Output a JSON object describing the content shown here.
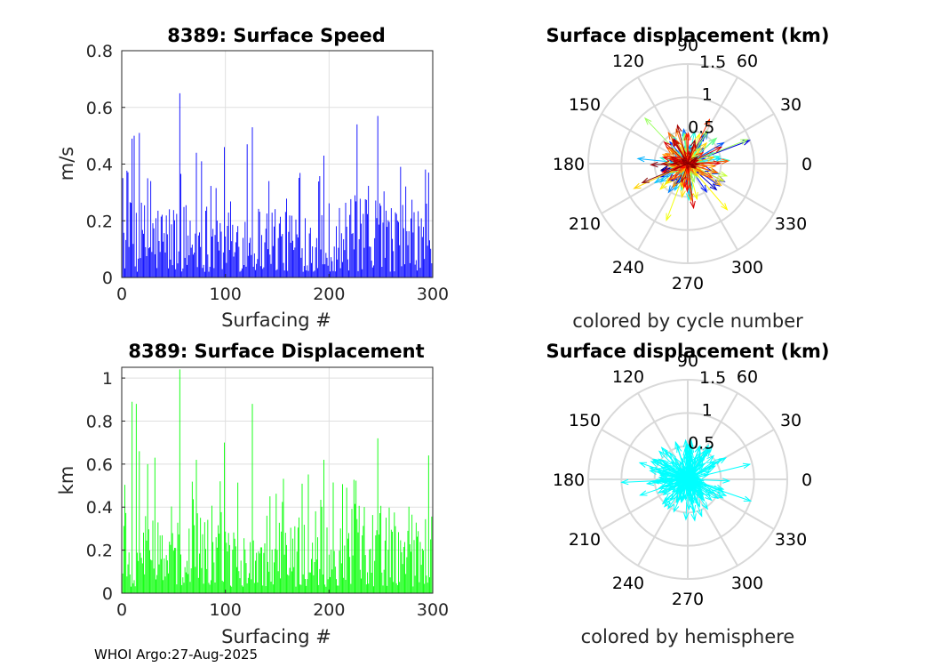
{
  "footer": "WHOI Argo:27-Aug-2025",
  "chart_data": [
    {
      "type": "bar",
      "title": "8389: Surface Speed",
      "xlabel": "Surfacing #",
      "ylabel": "m/s",
      "xlim": [
        0,
        300
      ],
      "ylim": [
        0,
        0.8
      ],
      "xticks": [
        "0",
        "100",
        "200",
        "300"
      ],
      "yticks": [
        "0",
        "0.2",
        "0.4",
        "0.6",
        "0.8"
      ],
      "grid": true,
      "color": "#0000ff",
      "n_points": 300,
      "peaks": [
        {
          "x": 10,
          "y": 0.49
        },
        {
          "x": 12,
          "y": 0.5
        },
        {
          "x": 17,
          "y": 0.51
        },
        {
          "x": 25,
          "y": 0.35
        },
        {
          "x": 28,
          "y": 0.34
        },
        {
          "x": 56,
          "y": 0.65
        },
        {
          "x": 72,
          "y": 0.44
        },
        {
          "x": 77,
          "y": 0.41
        },
        {
          "x": 99,
          "y": 0.46
        },
        {
          "x": 121,
          "y": 0.47
        },
        {
          "x": 126,
          "y": 0.53
        },
        {
          "x": 142,
          "y": 0.34
        },
        {
          "x": 195,
          "y": 0.43
        },
        {
          "x": 227,
          "y": 0.54
        },
        {
          "x": 247,
          "y": 0.57
        },
        {
          "x": 296,
          "y": 0.37
        }
      ],
      "typical_range": [
        0.02,
        0.28
      ]
    },
    {
      "type": "polar-arrows",
      "title": "Surface displacement (km)",
      "caption": "colored by cycle number",
      "angle_ticks": [
        "0",
        "30",
        "60",
        "90",
        "120",
        "150",
        "180",
        "210",
        "240",
        "270",
        "300",
        "330"
      ],
      "radial_ticks": [
        "0.5",
        "1",
        "1.5"
      ],
      "rmax": 1.5,
      "colormap": "jet",
      "n_arrows": 300
    },
    {
      "type": "bar",
      "title": "8389: Surface Displacement",
      "xlabel": "Surfacing #",
      "ylabel": "km",
      "xlim": [
        0,
        300
      ],
      "ylim": [
        0,
        1.05
      ],
      "xticks": [
        "0",
        "100",
        "200",
        "300"
      ],
      "yticks": [
        "0",
        "0.2",
        "0.4",
        "0.6",
        "0.8",
        "1"
      ],
      "grid": true,
      "color": "#00ff00",
      "n_points": 300,
      "peaks": [
        {
          "x": 10,
          "y": 0.89
        },
        {
          "x": 14,
          "y": 0.88
        },
        {
          "x": 17,
          "y": 0.66
        },
        {
          "x": 25,
          "y": 0.6
        },
        {
          "x": 32,
          "y": 0.63
        },
        {
          "x": 56,
          "y": 1.04
        },
        {
          "x": 72,
          "y": 0.62
        },
        {
          "x": 99,
          "y": 0.7
        },
        {
          "x": 126,
          "y": 0.88
        },
        {
          "x": 195,
          "y": 0.62
        },
        {
          "x": 247,
          "y": 0.72
        },
        {
          "x": 296,
          "y": 0.64
        }
      ],
      "typical_range": [
        0.03,
        0.38
      ]
    },
    {
      "type": "polar-arrows",
      "title": "Surface displacement (km)",
      "caption": "colored by hemisphere",
      "angle_ticks": [
        "0",
        "30",
        "60",
        "90",
        "120",
        "150",
        "180",
        "210",
        "240",
        "270",
        "300",
        "330"
      ],
      "radial_ticks": [
        "0.5",
        "1",
        "1.5"
      ],
      "rmax": 1.5,
      "color": "#00ffff",
      "n_arrows": 300
    }
  ]
}
